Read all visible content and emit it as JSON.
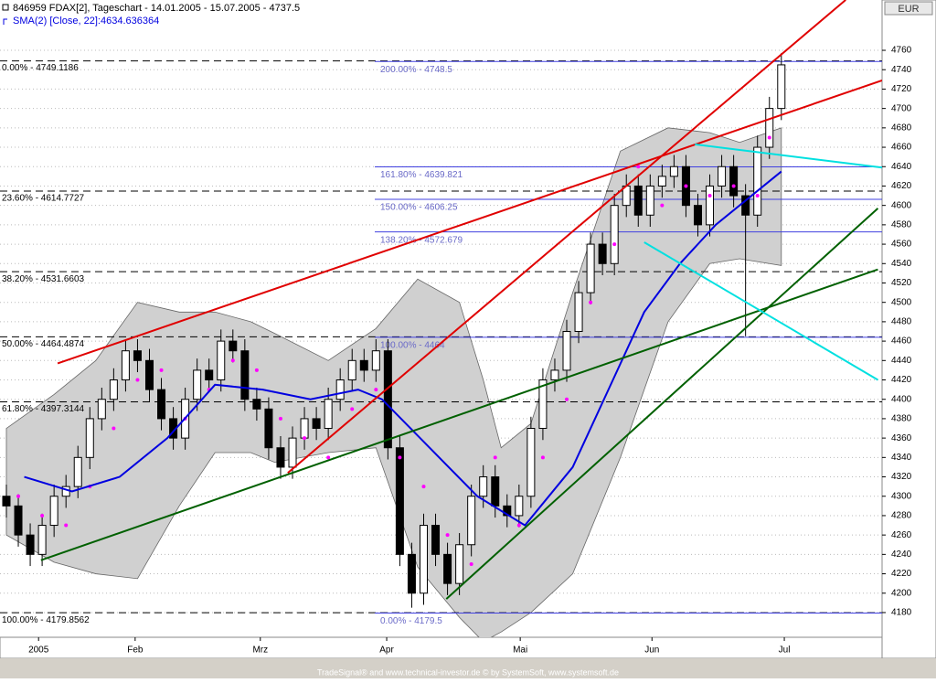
{
  "chart_data": {
    "type": "candlestick",
    "title": "846959  FDAX[2], Tageschart - 14.01.2005 - 15.07.2005 - 4737.5",
    "currency": "EUR",
    "footer": "TradeSignal® and www.technical-investor.de © by  SystemSoft, www.systemsoft.de",
    "xlim": [
      -1.07,
      146.9
    ],
    "xticks": [
      {
        "value": 5.4,
        "label": "2005"
      },
      {
        "value": 21.6,
        "label": "Feb"
      },
      {
        "value": 42.6,
        "label": "Mrz"
      },
      {
        "value": 63.8,
        "label": "Apr"
      },
      {
        "value": 86.2,
        "label": "Mai"
      },
      {
        "value": 108.3,
        "label": "Jun"
      },
      {
        "value": 130.5,
        "label": "Jul"
      }
    ],
    "ylim": [
      4154.5,
      4811.9
    ],
    "yticks": [
      4180,
      4200,
      4220,
      4240,
      4260,
      4280,
      4300,
      4320,
      4340,
      4360,
      4380,
      4400,
      4420,
      4440,
      4460,
      4480,
      4500,
      4520,
      4540,
      4560,
      4580,
      4600,
      4620,
      4640,
      4660,
      4680,
      4700,
      4720,
      4740,
      4760
    ],
    "grid": true,
    "up_color": "#ffffff",
    "down_color": "#000000",
    "candles": {
      "x": [
        0,
        2,
        4,
        6,
        8,
        10,
        12,
        14,
        16,
        18,
        20,
        22,
        24,
        26,
        28,
        30,
        32,
        34,
        36,
        38,
        40,
        42,
        44,
        46,
        48,
        50,
        52,
        54,
        56,
        58,
        60,
        62,
        64,
        66,
        68,
        70,
        72,
        74,
        76,
        78,
        80,
        82,
        84,
        86,
        88,
        90,
        92,
        94,
        96,
        98,
        100,
        102,
        104,
        106,
        108,
        110,
        112,
        114,
        116,
        118,
        120,
        122,
        124,
        126,
        128,
        130
      ],
      "ohlc": [
        [
          4300,
          4312,
          4278,
          4290
        ],
        [
          4290,
          4302,
          4248,
          4260
        ],
        [
          4260,
          4272,
          4228,
          4240
        ],
        [
          4240,
          4282,
          4228,
          4270
        ],
        [
          4270,
          4312,
          4258,
          4300
        ],
        [
          4300,
          4322,
          4288,
          4310
        ],
        [
          4310,
          4352,
          4298,
          4340
        ],
        [
          4340,
          4392,
          4328,
          4380
        ],
        [
          4380,
          4412,
          4368,
          4400
        ],
        [
          4400,
          4432,
          4388,
          4420
        ],
        [
          4420,
          4462,
          4408,
          4450
        ],
        [
          4450,
          4462,
          4428,
          4440
        ],
        [
          4440,
          4452,
          4398,
          4410
        ],
        [
          4410,
          4422,
          4368,
          4380
        ],
        [
          4380,
          4392,
          4348,
          4360
        ],
        [
          4360,
          4412,
          4348,
          4400
        ],
        [
          4400,
          4442,
          4388,
          4430
        ],
        [
          4430,
          4442,
          4408,
          4420
        ],
        [
          4420,
          4472,
          4408,
          4460
        ],
        [
          4460,
          4472,
          4438,
          4450
        ],
        [
          4450,
          4462,
          4388,
          4400
        ],
        [
          4400,
          4412,
          4378,
          4390
        ],
        [
          4390,
          4402,
          4338,
          4350
        ],
        [
          4350,
          4362,
          4318,
          4330
        ],
        [
          4330,
          4372,
          4318,
          4360
        ],
        [
          4360,
          4392,
          4348,
          4380
        ],
        [
          4380,
          4392,
          4358,
          4370
        ],
        [
          4370,
          4412,
          4358,
          4400
        ],
        [
          4400,
          4432,
          4388,
          4420
        ],
        [
          4420,
          4452,
          4408,
          4440
        ],
        [
          4440,
          4452,
          4418,
          4430
        ],
        [
          4430,
          4462,
          4418,
          4450
        ],
        [
          4450,
          4462,
          4338,
          4350
        ],
        [
          4350,
          4362,
          4228,
          4240
        ],
        [
          4240,
          4252,
          4185,
          4200
        ],
        [
          4200,
          4282,
          4188,
          4270
        ],
        [
          4270,
          4282,
          4228,
          4240
        ],
        [
          4240,
          4252,
          4198,
          4210
        ],
        [
          4210,
          4262,
          4198,
          4250
        ],
        [
          4250,
          4312,
          4238,
          4300
        ],
        [
          4300,
          4332,
          4288,
          4320
        ],
        [
          4320,
          4332,
          4278,
          4290
        ],
        [
          4290,
          4302,
          4268,
          4280
        ],
        [
          4280,
          4312,
          4268,
          4300
        ],
        [
          4300,
          4382,
          4288,
          4370
        ],
        [
          4370,
          4432,
          4358,
          4420
        ],
        [
          4420,
          4442,
          4408,
          4430
        ],
        [
          4430,
          4482,
          4418,
          4470
        ],
        [
          4470,
          4522,
          4458,
          4510
        ],
        [
          4510,
          4572,
          4498,
          4560
        ],
        [
          4560,
          4572,
          4528,
          4540
        ],
        [
          4540,
          4612,
          4528,
          4600
        ],
        [
          4600,
          4632,
          4588,
          4620
        ],
        [
          4620,
          4632,
          4578,
          4590
        ],
        [
          4590,
          4632,
          4578,
          4620
        ],
        [
          4620,
          4642,
          4608,
          4630
        ],
        [
          4630,
          4652,
          4618,
          4640
        ],
        [
          4640,
          4652,
          4588,
          4600
        ],
        [
          4600,
          4612,
          4568,
          4580
        ],
        [
          4580,
          4632,
          4568,
          4620
        ],
        [
          4620,
          4652,
          4608,
          4640
        ],
        [
          4640,
          4652,
          4598,
          4610
        ],
        [
          4610,
          4622,
          4465,
          4590
        ],
        [
          4590,
          4672,
          4578,
          4660
        ],
        [
          4660,
          4712,
          4648,
          4700
        ],
        [
          4700,
          4757,
          4688,
          4745
        ]
      ]
    },
    "bands": {
      "color": "#d0d0d0",
      "x": [
        0,
        8,
        15,
        22,
        29,
        35,
        41,
        45,
        54,
        62,
        69,
        76,
        80,
        83,
        88,
        95,
        103,
        111,
        118,
        123,
        130
      ],
      "upper": [
        4370,
        4405,
        4440,
        4500,
        4490,
        4490,
        4480,
        4468,
        4440,
        4473,
        4524,
        4500,
        4420,
        4350,
        4375,
        4510,
        4656,
        4680,
        4675,
        4665,
        4680
      ],
      "lower": [
        4260,
        4232,
        4220,
        4215,
        4290,
        4345,
        4345,
        4335,
        4345,
        4350,
        4227,
        4175,
        4150,
        4160,
        4180,
        4220,
        4340,
        4480,
        4540,
        4545,
        4538
      ]
    },
    "sma": {
      "name": "SMA(2) [Close, 22]:4634.636364",
      "color": "#0000e0",
      "x": [
        3,
        11,
        19,
        27,
        35,
        43,
        51,
        59,
        63,
        71,
        79,
        87,
        95,
        101,
        107,
        113,
        119,
        125,
        130
      ],
      "values": [
        4320,
        4305,
        4320,
        4360,
        4415,
        4410,
        4400,
        4410,
        4400,
        4350,
        4300,
        4270,
        4330,
        4410,
        4490,
        4540,
        4580,
        4610,
        4635
      ]
    },
    "sar": {
      "color": "#ff00ff",
      "x": [
        2,
        6,
        10,
        14,
        18,
        22,
        26,
        30,
        34,
        38,
        42,
        46,
        50,
        54,
        58,
        62,
        66,
        70,
        74,
        78,
        82,
        86,
        90,
        94,
        98,
        102,
        106,
        110,
        114,
        118,
        122,
        126,
        128
      ],
      "values": [
        4300,
        4280,
        4270,
        4310,
        4370,
        4420,
        4430,
        4380,
        4410,
        4440,
        4430,
        4380,
        4360,
        4340,
        4390,
        4410,
        4340,
        4310,
        4260,
        4230,
        4340,
        4270,
        4340,
        4400,
        4500,
        4560,
        4640,
        4600,
        4620,
        4610,
        4620,
        4610,
        4670
      ]
    },
    "fib_left": [
      {
        "value": 4749.1186,
        "label": "0.00% - 4749.1186"
      },
      {
        "value": 4614.7727,
        "label": "23.60% - 4614.7727"
      },
      {
        "value": 4531.6603,
        "label": "38.20% - 4531.6603"
      },
      {
        "value": 4464.4874,
        "label": "50.00% - 4464.4874"
      },
      {
        "value": 4397.3144,
        "label": "61.80% - 4397.3144"
      },
      {
        "value": 4179.8562,
        "label": "100.00% - 4179.8562"
      }
    ],
    "fib_right": [
      {
        "value": 4748.5,
        "label": "200.00% - 4748.5"
      },
      {
        "value": 4639.821,
        "label": "161.80% - 4639.821"
      },
      {
        "value": 4606.25,
        "label": "150.00% - 4606.25"
      },
      {
        "value": 4572.679,
        "label": "138.20% - 4572.679"
      },
      {
        "value": 4464,
        "label": "100.00% - 4464"
      },
      {
        "value": 4179.5,
        "label": "0.00% - 4179.5"
      }
    ],
    "fib_right_start": 61.8,
    "fib_right_color": "#4040e0",
    "trend_lines": [
      {
        "color": "#e00000",
        "x": [
          8.6,
          146.9
        ],
        "y": [
          4437,
          4729
        ]
      },
      {
        "color": "#e00000",
        "x": [
          47.2,
          140.8
        ],
        "y": [
          4324,
          4812
        ]
      },
      {
        "color": "#006000",
        "x": [
          5.8,
          146.2
        ],
        "y": [
          4234,
          4534
        ]
      },
      {
        "color": "#006000",
        "x": [
          73.8,
          146.2
        ],
        "y": [
          4194,
          4597
        ]
      },
      {
        "color": "#00e0e0",
        "x": [
          115.5,
          146.9
        ],
        "y": [
          4663,
          4639
        ]
      },
      {
        "color": "#00e0e0",
        "x": [
          107,
          146.2
        ],
        "y": [
          4562,
          4420
        ]
      }
    ]
  }
}
